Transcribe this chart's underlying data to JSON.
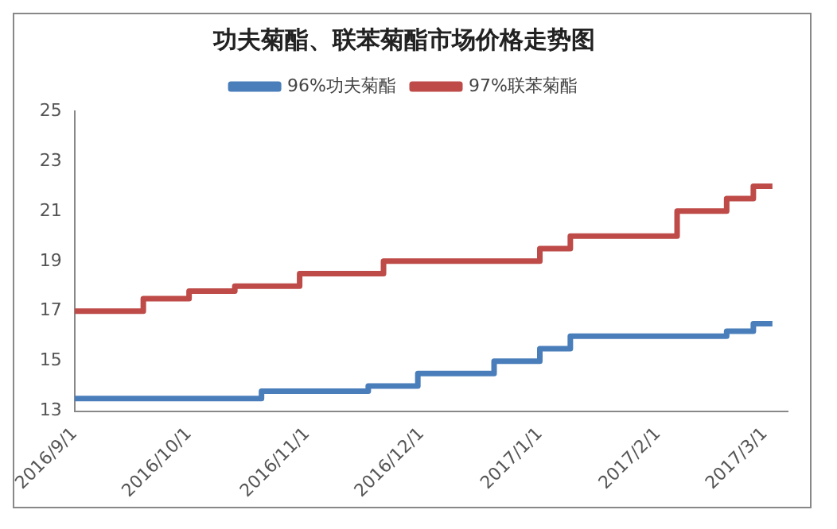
{
  "chart_data": {
    "type": "step",
    "title": "功夫菊酯、联苯菊酯市场价格走势图",
    "legend": "top",
    "grid": false,
    "marker": "none",
    "line_style": "solid",
    "xlim": [
      "2016-09-01",
      "2017-03-07"
    ],
    "xticks": [
      {
        "value": "2016-09-01",
        "label": "2016/9/1"
      },
      {
        "value": "2016-10-01",
        "label": "2016/10/1"
      },
      {
        "value": "2016-11-01",
        "label": "2016/11/1"
      },
      {
        "value": "2016-12-01",
        "label": "2016/12/1"
      },
      {
        "value": "2017-01-01",
        "label": "2017/1/1"
      },
      {
        "value": "2017-02-01",
        "label": "2017/2/1"
      },
      {
        "value": "2017-03-01",
        "label": "2017/3/1"
      }
    ],
    "ylim": [
      13,
      25
    ],
    "yticks": [
      13,
      15,
      17,
      19,
      21,
      23,
      25
    ],
    "series": [
      {
        "name": "96%功夫菊酯",
        "color": "#4a7ebb",
        "x": [
          "2016-09-01",
          "2016-10-20",
          "2016-11-17",
          "2016-11-30",
          "2016-12-20",
          "2017-01-01",
          "2017-01-09",
          "2017-02-19",
          "2017-02-26",
          "2017-03-03"
        ],
        "values": [
          13.5,
          13.8,
          14,
          14.5,
          15,
          15.5,
          16,
          16.2,
          16.5,
          16.5
        ]
      },
      {
        "name": "97%联苯菊酯",
        "color": "#be4b48",
        "x": [
          "2016-09-01",
          "2016-09-19",
          "2016-10-01",
          "2016-10-13",
          "2016-10-30",
          "2016-11-21",
          "2017-01-01",
          "2017-01-09",
          "2017-02-06",
          "2017-02-19",
          "2017-02-26",
          "2017-03-03"
        ],
        "values": [
          17,
          17.5,
          17.8,
          18,
          18.5,
          19,
          19.5,
          20,
          21,
          21.5,
          22,
          22
        ]
      }
    ]
  }
}
